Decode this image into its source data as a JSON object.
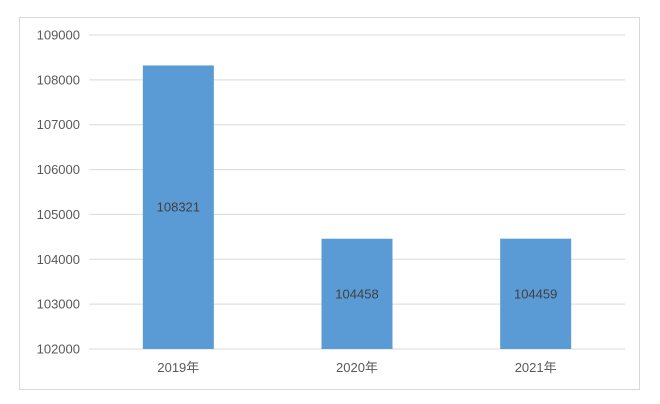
{
  "chart_data": {
    "type": "bar",
    "categories": [
      "2019年",
      "2020年",
      "2021年"
    ],
    "values": [
      108321,
      104458,
      104459
    ],
    "data_labels": [
      "108321",
      "104458",
      "104459"
    ],
    "title": "",
    "xlabel": "",
    "ylabel": "",
    "ylim": [
      102000,
      109000
    ],
    "yticks": [
      "102000",
      "103000",
      "104000",
      "105000",
      "106000",
      "107000",
      "108000",
      "109000"
    ],
    "grid": true,
    "legend": "none",
    "bar_color": "#5b9bd5",
    "grid_color": "#d9d9d9"
  }
}
